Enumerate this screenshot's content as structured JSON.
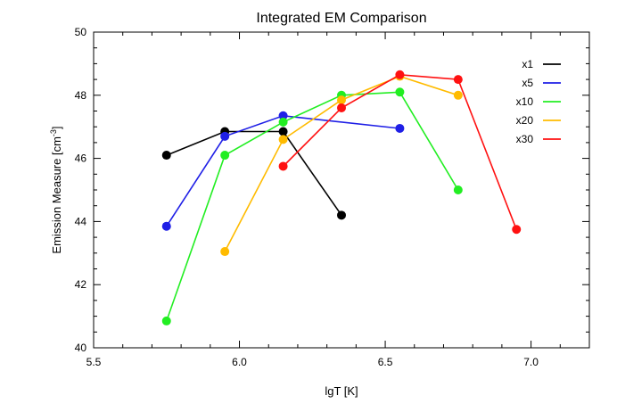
{
  "chart_data": {
    "type": "line",
    "title": "Integrated EM Comparison",
    "xlabel": "lgT [K]",
    "ylabel_main": "Emission Measure [cm",
    "ylabel_exp": "-3",
    "ylabel_close": "]",
    "xlim": [
      5.5,
      7.2
    ],
    "ylim": [
      40,
      50
    ],
    "xticks": [
      "5.5",
      "6.0",
      "6.5",
      "7.0"
    ],
    "xtick_values": [
      5.5,
      6.0,
      6.5,
      7.0
    ],
    "yticks": [
      "40",
      "42",
      "44",
      "46",
      "48",
      "50"
    ],
    "ytick_values": [
      40,
      42,
      44,
      46,
      48,
      50
    ],
    "grid": false,
    "legend_position": "top-right",
    "series": [
      {
        "name": "x1",
        "color": "#000000",
        "x": [
          5.75,
          5.95,
          6.15,
          6.35
        ],
        "y": [
          46.1,
          46.85,
          46.85,
          44.2
        ]
      },
      {
        "name": "x5",
        "color": "#1f1fe6",
        "x": [
          5.75,
          5.95,
          6.15,
          6.55
        ],
        "y": [
          43.85,
          46.7,
          47.35,
          46.95
        ]
      },
      {
        "name": "x10",
        "color": "#22ee22",
        "x": [
          5.75,
          5.95,
          6.15,
          6.35,
          6.55,
          6.75
        ],
        "y": [
          40.85,
          46.1,
          47.15,
          48.0,
          48.1,
          45.0
        ]
      },
      {
        "name": "x20",
        "color": "#ffbb00",
        "x": [
          5.95,
          6.15,
          6.35,
          6.55,
          6.75
        ],
        "y": [
          43.05,
          46.6,
          47.85,
          48.6,
          48.0
        ]
      },
      {
        "name": "x30",
        "color": "#ff1111",
        "x": [
          6.15,
          6.35,
          6.55,
          6.75,
          6.95
        ],
        "y": [
          45.75,
          47.6,
          48.65,
          48.5,
          43.75
        ]
      }
    ]
  }
}
